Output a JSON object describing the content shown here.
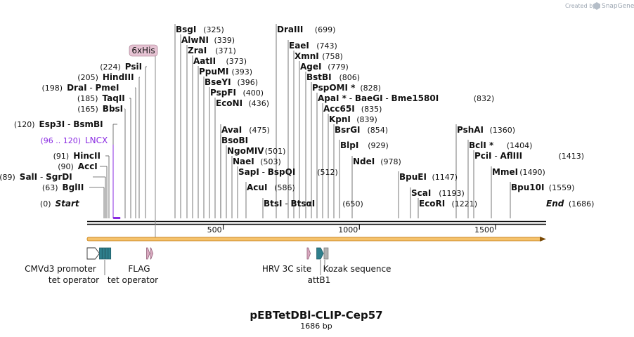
{
  "credit": {
    "created_by": "Created by",
    "brand": "SnapGene"
  },
  "title": "pEBTetDBl-CLIP-Cep57",
  "length": "1686 bp",
  "total_bp": 1686,
  "colors": {
    "backbone": "#111111",
    "orf_fill": "#f5c26b",
    "orf_stroke": "#c47a0c",
    "tag_fill": "#e6c3d3",
    "tag_stroke": "#9a6b80",
    "operator": "#2e7f8c",
    "purple": "#8a2be2"
  },
  "ticks": [
    {
      "bp": 500,
      "label": "500"
    },
    {
      "bp": 1000,
      "label": "1000"
    },
    {
      "bp": 1500,
      "label": "1500"
    }
  ],
  "sites": [
    {
      "name": "Start",
      "pos": "(0)",
      "bp": 0,
      "style": "italic"
    },
    {
      "name": "BglII",
      "pos": "(63)",
      "bp": 63
    },
    {
      "name": "SalI",
      "name2": "SgrDI",
      "pos": "(89)",
      "bp": 89
    },
    {
      "name": "AccI",
      "pos": "(90)",
      "bp": 90
    },
    {
      "name": "HincII",
      "pos": "(91)",
      "bp": 91
    },
    {
      "name": "Esp3I",
      "name2": "BsmBI",
      "pos": "(120)",
      "bp": 120
    },
    {
      "name": "BbsI",
      "pos": "(165)",
      "bp": 165
    },
    {
      "name": "TaqII",
      "pos": "(185)",
      "bp": 185
    },
    {
      "name": "DraI",
      "name2": "PmeI",
      "pos": "(198)",
      "bp": 198
    },
    {
      "name": "HindIII",
      "pos": "(205)",
      "bp": 205
    },
    {
      "name": "PsiI",
      "pos": "(224)",
      "bp": 224
    },
    {
      "name": "BsgI",
      "pos": "(325)",
      "bp": 325
    },
    {
      "name": "AlwNI",
      "pos": "(339)",
      "bp": 339
    },
    {
      "name": "ZraI",
      "pos": "(371)",
      "bp": 371
    },
    {
      "name": "AatII",
      "pos": "(373)",
      "bp": 373
    },
    {
      "name": "PpuMI",
      "pos": "(393)",
      "bp": 393
    },
    {
      "name": "BseYI",
      "pos": "(396)",
      "bp": 396
    },
    {
      "name": "PspFI",
      "pos": "(400)",
      "bp": 400
    },
    {
      "name": "EcoNI",
      "pos": "(436)",
      "bp": 436
    },
    {
      "name": "AvaI",
      "pos": "(475)",
      "bp": 475
    },
    {
      "name": "BsoBI",
      "bp": 475
    },
    {
      "name": "NgoMIV",
      "pos": "(501)",
      "bp": 501
    },
    {
      "name": "NaeI",
      "pos": "(503)",
      "bp": 503
    },
    {
      "name": "SapI",
      "name2": "BspQI",
      "pos": "(512)",
      "bp": 512
    },
    {
      "name": "AcuI",
      "pos": "(586)",
      "bp": 586
    },
    {
      "name": "BtsI",
      "name2": "BtsαI",
      "pos": "(650)",
      "bp": 650
    },
    {
      "name": "DraIII",
      "pos": "(699)",
      "bp": 699
    },
    {
      "name": "EaeI",
      "pos": "(743)",
      "bp": 743
    },
    {
      "name": "XmnI",
      "pos": "(758)",
      "bp": 758
    },
    {
      "name": "AgeI",
      "pos": "(779)",
      "bp": 779
    },
    {
      "name": "BstBI",
      "pos": "(806)",
      "bp": 806
    },
    {
      "name": "PspOMI *",
      "pos": "(828)",
      "bp": 828
    },
    {
      "name": "ApaI *",
      "name2": "BaeGI",
      "name3": "Bme1580I",
      "pos": "(832)",
      "bp": 832
    },
    {
      "name": "Acc65I",
      "pos": "(835)",
      "bp": 835
    },
    {
      "name": "KpnI",
      "pos": "(839)",
      "bp": 839
    },
    {
      "name": "BsrGI",
      "pos": "(854)",
      "bp": 854
    },
    {
      "name": "BlpI",
      "pos": "(929)",
      "bp": 929
    },
    {
      "name": "NdeI",
      "pos": "(978)",
      "bp": 978
    },
    {
      "name": "BpuEI",
      "pos": "(1147)",
      "bp": 1147
    },
    {
      "name": "ScaI",
      "pos": "(1193)",
      "bp": 1193
    },
    {
      "name": "EcoRI",
      "pos": "(1221)",
      "bp": 1221
    },
    {
      "name": "PshAI",
      "pos": "(1360)",
      "bp": 1360
    },
    {
      "name": "BclI *",
      "pos": "(1404)",
      "bp": 1404
    },
    {
      "name": "PciI",
      "name2": "AflIII",
      "pos": "(1413)",
      "bp": 1413
    },
    {
      "name": "MmeI",
      "pos": "(1490)",
      "bp": 1490
    },
    {
      "name": "Bpu10I",
      "pos": "(1559)",
      "bp": 1559
    },
    {
      "name": "End",
      "pos": "(1686)",
      "bp": 1686,
      "style": "italic"
    }
  ],
  "lncx": {
    "label": "LNCX",
    "range": "(96 .. 120)",
    "start": 96,
    "end": 120
  },
  "his_tag": {
    "label": "6xHis",
    "bp": 255
  },
  "features": [
    {
      "label": "CMVd3 promoter",
      "type": "promoter",
      "start": 0,
      "end": 45
    },
    {
      "label": "tet operator",
      "type": "operator",
      "start": 45,
      "end": 65
    },
    {
      "label": "tet operator",
      "type": "operator",
      "start": 67,
      "end": 87
    },
    {
      "label": "FLAG",
      "type": "tag",
      "start": 218,
      "end": 242
    },
    {
      "label": "HRV 3C site",
      "type": "tag",
      "start": 808,
      "end": 832
    },
    {
      "label": "attB1",
      "type": "operator",
      "start": 843,
      "end": 868
    },
    {
      "label": "Kozak sequence",
      "type": "misc",
      "start": 870,
      "end": 880
    }
  ],
  "orf": {
    "start": 0,
    "end": 1686
  }
}
